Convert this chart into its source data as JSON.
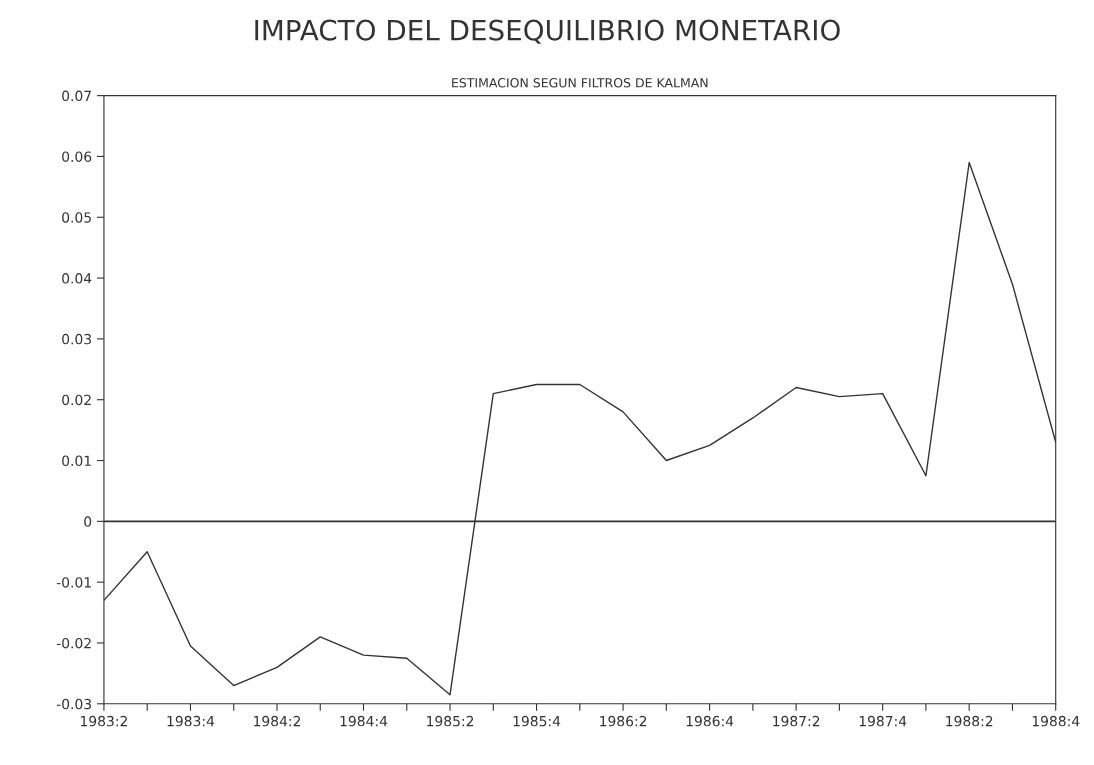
{
  "chart_data": {
    "type": "line",
    "title": "IMPACTO DEL DESEQUILIBRIO MONETARIO",
    "subtitle": "ESTIMACION SEGUN FILTROS DE KALMAN",
    "categories": [
      "1983:2",
      null,
      "1983:4",
      null,
      "1984:2",
      null,
      "1984:4",
      null,
      "1985:2",
      null,
      "1985:4",
      null,
      "1986:2",
      null,
      "1986:4",
      null,
      "1987:2",
      null,
      "1987:4",
      null,
      "1988:2",
      null,
      "1988:4"
    ],
    "series": [
      {
        "color": "#333333",
        "values": [
          -0.013,
          -0.005,
          -0.0205,
          -0.027,
          -0.024,
          -0.019,
          -0.022,
          -0.0225,
          -0.0285,
          0.021,
          0.0225,
          0.0225,
          0.018,
          0.01,
          0.0125,
          0.017,
          0.022,
          0.0205,
          0.021,
          0.0075,
          0.059,
          0.039,
          0.013
        ]
      }
    ],
    "ylim": [
      -0.03,
      0.07
    ],
    "yticks": [
      {
        "value": -0.03,
        "label": "-0.03"
      },
      {
        "value": -0.02,
        "label": "-0.02"
      },
      {
        "value": -0.01,
        "label": "-0.01"
      },
      0,
      0.01,
      0.02,
      0.03,
      0.04,
      0.05,
      0.06,
      0.07
    ],
    "ref_lines": [
      {
        "axis": "y",
        "value": 0,
        "color": "#333333"
      }
    ],
    "grid": false,
    "legend": false,
    "marker": "none",
    "line_style": "solid"
  }
}
